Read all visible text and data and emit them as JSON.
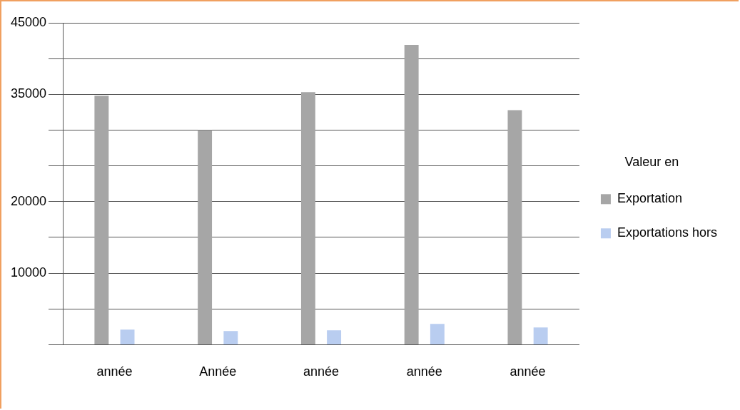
{
  "chart_data": {
    "type": "bar",
    "legend_title": "Valeur en",
    "categories": [
      "année",
      "Année",
      "année",
      "année",
      "année"
    ],
    "series": [
      {
        "name": "Exportation",
        "color": "#a6a6a6",
        "values": [
          34800,
          30000,
          35300,
          41900,
          32800
        ]
      },
      {
        "name": "Exportations hors",
        "color": "#b9cdf0",
        "values": [
          2100,
          1900,
          2000,
          2900,
          2400
        ]
      }
    ],
    "ylim": [
      0,
      45000
    ],
    "yticks": [
      {
        "value": 0,
        "label": null
      },
      {
        "value": 5000,
        "label": null
      },
      10000,
      {
        "value": 15000,
        "label": null
      },
      20000,
      {
        "value": 25000,
        "label": null
      },
      {
        "value": 30000,
        "label": null
      },
      35000,
      {
        "value": 40000,
        "label": null
      },
      45000
    ],
    "grid": "y",
    "legend": "right"
  }
}
